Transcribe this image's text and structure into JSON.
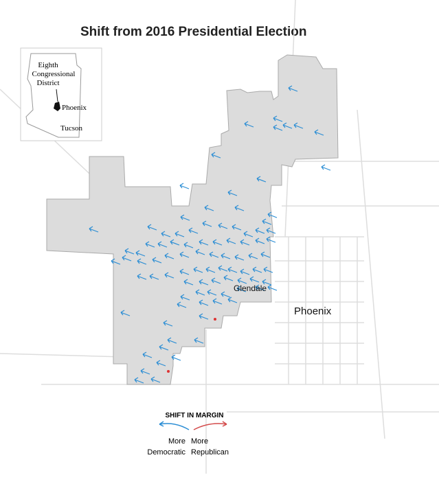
{
  "title": "Shift from 2016 Presidential Election",
  "inset": {
    "district_lines": [
      "Eighth",
      "Congressional",
      "District"
    ],
    "city1": "Phoenix",
    "city2": "Tucson"
  },
  "map_labels": {
    "glendale": "Glendale",
    "phoenix": "Phoenix"
  },
  "legend": {
    "title": "SHIFT IN MARGIN",
    "democratic": [
      "More",
      "Democratic"
    ],
    "republican": [
      "More",
      "Republican"
    ]
  }
}
